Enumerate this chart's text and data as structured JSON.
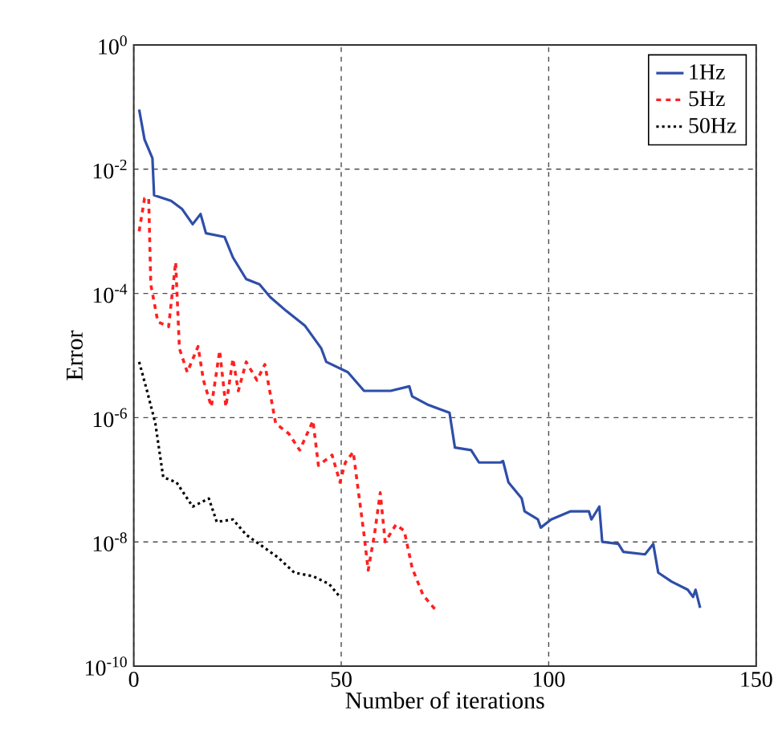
{
  "chart_data": {
    "type": "line",
    "xlabel": "Number of iterations",
    "ylabel": "Error",
    "log": "y",
    "grid": true,
    "legend": "top right",
    "xlim": [
      0,
      150
    ],
    "xticks": [
      0,
      50,
      100,
      150
    ],
    "ylim": [
      1e-10,
      1
    ],
    "yticks": [
      {
        "value": 1e-10,
        "label": "10$^{-10}$"
      },
      {
        "value": 1e-08,
        "label": "10$^{-8}$"
      },
      {
        "value": 1e-06,
        "label": "10$^{-6}$"
      },
      {
        "value": 0.0001,
        "label": "10$^{-4}$"
      },
      {
        "value": 0.01,
        "label": "10$^{-2}$"
      },
      {
        "value": 1,
        "label": "10$^{0}$"
      }
    ],
    "series": [
      {
        "name": "1Hz",
        "color": "#2e4ea8",
        "line_style": "solid",
        "x": [
          1.3,
          2.6,
          4.5,
          4.9,
          9,
          11.6,
          14.2,
          16.1,
          17.4,
          21.9,
          23.9,
          27.1,
          30.3,
          32.9,
          36.8,
          41.3,
          45.2,
          46.4,
          51.6,
          55.5,
          61.9,
          66.4,
          67.1,
          71,
          76.1,
          77.4,
          81.3,
          83.2,
          88.4,
          89,
          90.3,
          93.5,
          94.2,
          97.4,
          98.1,
          100.6,
          105.2,
          109.7,
          110.3,
          112.2,
          112.9,
          116.8,
          118,
          123.2,
          125.2,
          126.4,
          129.6,
          133.5,
          134.8,
          135.4,
          136.5
        ],
        "values": [
          0.091,
          0.03,
          0.015,
          0.0038,
          0.0031,
          0.0023,
          0.0013,
          0.0019,
          0.00093,
          0.00081,
          0.00038,
          0.00017,
          0.00014,
          8.7e-05,
          5.2e-05,
          3e-05,
          1.3e-05,
          7.9e-06,
          5.4e-06,
          2.7e-06,
          2.7e-06,
          3.2e-06,
          2.2e-06,
          1.6e-06,
          1.2e-06,
          3.3e-07,
          3e-07,
          1.9e-07,
          1.9e-07,
          2e-07,
          9.1e-08,
          5e-08,
          3.1e-08,
          2.3e-08,
          1.7e-08,
          2.3e-08,
          3.1e-08,
          3.1e-08,
          2.3e-08,
          3.7e-08,
          1e-08,
          9.3e-09,
          6.9e-09,
          6.3e-09,
          9.3e-09,
          3.2e-09,
          2.3e-09,
          1.7e-09,
          1.3e-09,
          1.7e-09,
          8.7e-10
        ]
      },
      {
        "name": "5Hz",
        "color": "#ff2020",
        "line_style": "dashed",
        "x": [
          1.3,
          2.6,
          3.6,
          4.1,
          5.8,
          8.4,
          10.1,
          11,
          12.9,
          15.5,
          16.8,
          18.7,
          20.7,
          22.2,
          23.9,
          25.2,
          27.1,
          29.7,
          31.6,
          34.2,
          37.4,
          40,
          43.2,
          44.5,
          47.8,
          49.7,
          51,
          52.9,
          55.5,
          56.5,
          58,
          59.4,
          60.6,
          63.2,
          65.2,
          67.1,
          69.7,
          72.9
        ],
        "values": [
          0.001,
          0.0034,
          0.0034,
          0.00014,
          3.5e-05,
          2.9e-05,
          0.00032,
          1.3e-05,
          5.4e-06,
          1.4e-05,
          4e-06,
          1.5e-06,
          1.2e-05,
          1.5e-06,
          8.9e-06,
          2.7e-06,
          7.9e-06,
          4e-06,
          7.2e-06,
          8.1e-07,
          5.5e-07,
          3e-07,
          8.9e-07,
          1.7e-07,
          2.5e-07,
          9.1e-08,
          1.9e-07,
          2.8e-07,
          1.3e-08,
          3.5e-09,
          1.3e-08,
          6.2e-08,
          1e-08,
          1.9e-08,
          1.5e-08,
          3.8e-09,
          1.4e-09,
          7.8e-10
        ]
      },
      {
        "name": "50Hz",
        "color": "#000000",
        "line_style": "dotted",
        "x": [
          1.3,
          3.2,
          5.2,
          7.1,
          10.3,
          14.2,
          18.1,
          20,
          23.9,
          27.1,
          31,
          34.8,
          38.7,
          43.2,
          47.1,
          49.7
        ],
        "values": [
          7.9e-06,
          2.7e-06,
          8.1e-07,
          1.1e-07,
          9.1e-08,
          3.7e-08,
          5e-08,
          2.1e-08,
          2.3e-08,
          1.3e-08,
          8.5e-09,
          5.6e-09,
          3.2e-09,
          2.8e-09,
          2.1e-09,
          1.3e-09
        ]
      }
    ]
  }
}
